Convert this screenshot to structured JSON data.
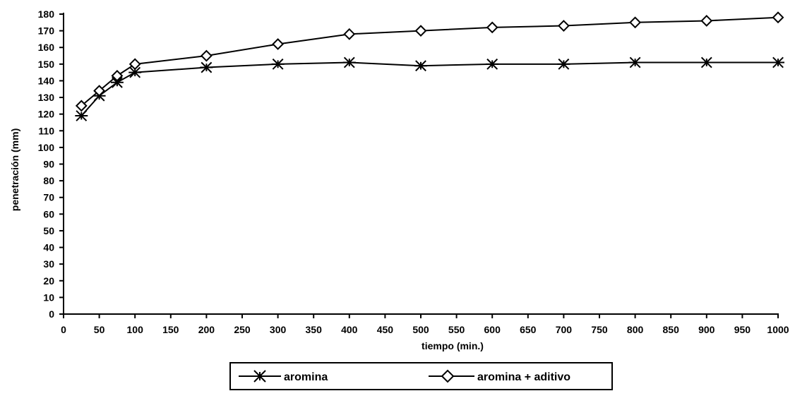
{
  "chart_data": {
    "type": "line",
    "title": "",
    "xlabel": "tiempo  (min.)",
    "ylabel": "penetración (mm)",
    "xlim": [
      0,
      1000
    ],
    "ylim": [
      0,
      180
    ],
    "x_ticks": [
      "0",
      "50",
      "100",
      "150",
      "200",
      "250",
      "300",
      "350",
      "400",
      "450",
      "500",
      "550",
      "600",
      "650",
      "700",
      "750",
      "800",
      "850",
      "900",
      "950",
      "1000"
    ],
    "y_ticks": [
      "0",
      "10",
      "20",
      "30",
      "40",
      "50",
      "60",
      "70",
      "80",
      "90",
      "100",
      "110",
      "120",
      "130",
      "140",
      "150",
      "160",
      "170",
      "180"
    ],
    "grid": false,
    "legend_position": "bottom",
    "series": [
      {
        "name": "aromina",
        "marker": "asterisk",
        "points": [
          [
            25,
            119
          ],
          [
            50,
            131
          ],
          [
            75,
            139
          ],
          [
            100,
            145
          ],
          [
            200,
            148
          ],
          [
            300,
            150
          ],
          [
            400,
            151
          ],
          [
            500,
            149
          ],
          [
            600,
            150
          ],
          [
            700,
            150
          ],
          [
            800,
            151
          ],
          [
            900,
            151
          ],
          [
            1000,
            151
          ]
        ]
      },
      {
        "name": "aromina + aditivo",
        "marker": "diamond",
        "points": [
          [
            25,
            125
          ],
          [
            50,
            134
          ],
          [
            75,
            143
          ],
          [
            100,
            150
          ],
          [
            200,
            155
          ],
          [
            300,
            162
          ],
          [
            400,
            168
          ],
          [
            500,
            170
          ],
          [
            600,
            172
          ],
          [
            700,
            173
          ],
          [
            800,
            175
          ],
          [
            900,
            176
          ],
          [
            1000,
            178
          ]
        ]
      }
    ]
  }
}
